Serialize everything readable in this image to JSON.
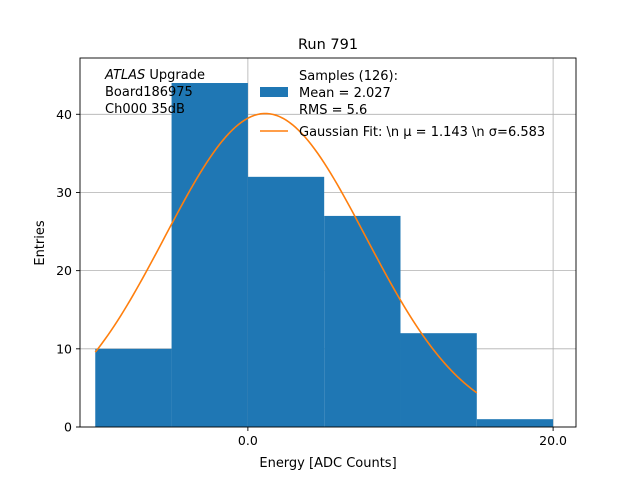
{
  "chart_data": {
    "type": "bar",
    "title": "Run 791",
    "xlabel": "Energy [ADC Counts]",
    "ylabel": "Entries",
    "xlim": [
      -11.0,
      21.5
    ],
    "ylim": [
      0,
      47.2
    ],
    "grid": true,
    "x_ticks": [
      0.0,
      20.0
    ],
    "x_tick_labels": [
      "0.0",
      "20.0"
    ],
    "y_ticks": [
      0,
      10,
      20,
      30,
      40
    ],
    "y_tick_labels": [
      "0",
      "10",
      "20",
      "30",
      "40"
    ],
    "bins": [
      {
        "x0": -10,
        "x1": -5,
        "count": 10
      },
      {
        "x0": -5,
        "x1": 0,
        "count": 44
      },
      {
        "x0": 0,
        "x1": 5,
        "count": 32
      },
      {
        "x0": 5,
        "x1": 10,
        "count": 27
      },
      {
        "x0": 10,
        "x1": 15,
        "count": 12
      },
      {
        "x0": 15,
        "x1": 20,
        "count": 1
      }
    ],
    "fit": {
      "mu": 1.143,
      "sigma": 6.583,
      "amplitude": 40.1,
      "x_range": [
        -10,
        15
      ]
    },
    "colors": {
      "hist": "#1f77b4",
      "fit": "#ff7f0e",
      "grid": "#b0b0b0"
    },
    "legend": {
      "placement": "top-right",
      "entries": [
        {
          "kind": "hist",
          "lines": [
            "Samples (126):",
            " Mean = 2.027",
            " RMS = 5.6"
          ]
        },
        {
          "kind": "fit",
          "lines": [
            "Gaussian Fit: \\n μ = 1.143 \\n σ=6.583"
          ]
        }
      ]
    },
    "annotation": {
      "lines": [
        {
          "italic": "ATLAS",
          "rest": " Upgrade"
        },
        {
          "italic": "",
          "rest": " Board186975"
        },
        {
          "italic": "",
          "rest": " Ch000 35dB"
        }
      ]
    }
  }
}
